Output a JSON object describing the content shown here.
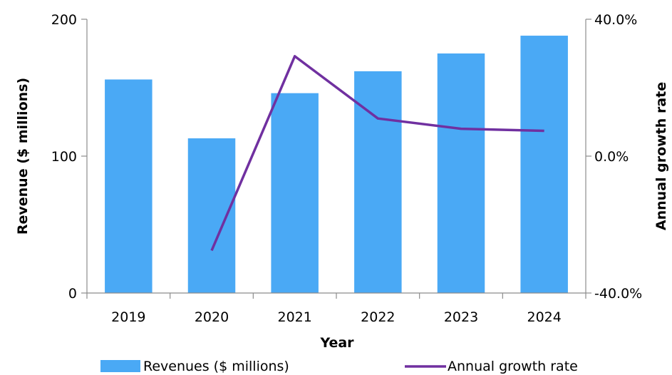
{
  "chart_data": {
    "type": "bar",
    "categories": [
      "2019",
      "2020",
      "2021",
      "2022",
      "2023",
      "2024"
    ],
    "series": [
      {
        "name": "Revenues ($ millions)",
        "type": "bar",
        "axis": "left",
        "color": "#4aa9f5",
        "values": [
          156,
          113,
          146,
          162,
          175,
          188
        ]
      },
      {
        "name": "Annual growth rate",
        "type": "line",
        "axis": "right",
        "color": "#7030a0",
        "values": [
          null,
          -27.6,
          29.2,
          11.0,
          8.0,
          7.4
        ]
      }
    ],
    "xlabel": "Year",
    "ylabel": "Revenue ($ millions)",
    "y2label": "Annual growth rate",
    "ylim": [
      0,
      200
    ],
    "y2lim": [
      -40,
      40
    ],
    "yticks": [
      "0",
      "100",
      "200"
    ],
    "y2ticks": [
      "-40.0%",
      "0.0%",
      "40.0%"
    ],
    "grid": false,
    "legend_position": "bottom"
  }
}
